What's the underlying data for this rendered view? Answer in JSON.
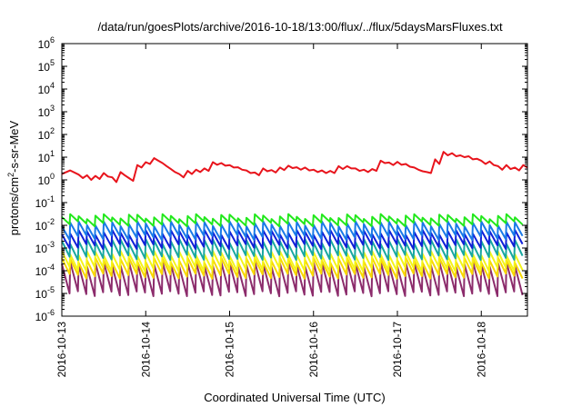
{
  "chart_data": {
    "type": "line",
    "title": "/data/run/goesPlots/archive/2016-10-18/13:00/flux/../flux/5daysMarsFluxes.txt",
    "xlabel": "Coordinated Universal Time (UTC)",
    "ylabel_parts": [
      "protons/cm",
      "2",
      "-s-sr-MeV"
    ],
    "x_ticks": [
      "2016-10-13",
      "2016-10-14",
      "2016-10-15",
      "2016-10-16",
      "2016-10-17",
      "2016-10-18"
    ],
    "x_range_days": [
      0,
      5.55
    ],
    "y_scale": "log",
    "y_exponents": [
      -6,
      -5,
      -4,
      -3,
      -2,
      -1,
      0,
      1,
      2,
      3,
      4,
      5,
      6
    ],
    "grid": false,
    "red_series": {
      "color": "#e8141c",
      "x": [
        0.0,
        0.1,
        0.2,
        0.25,
        0.3,
        0.35,
        0.4,
        0.45,
        0.5,
        0.55,
        0.6,
        0.65,
        0.7,
        0.75,
        0.8,
        0.85,
        0.9,
        0.95,
        1.0,
        1.05,
        1.1,
        1.15,
        1.2,
        1.25,
        1.3,
        1.35,
        1.4,
        1.45,
        1.5,
        1.55,
        1.6,
        1.65,
        1.7,
        1.75,
        1.8,
        1.85,
        1.9,
        1.95,
        2.0,
        2.05,
        2.1,
        2.15,
        2.2,
        2.25,
        2.3,
        2.35,
        2.4,
        2.45,
        2.5,
        2.55,
        2.6,
        2.65,
        2.7,
        2.75,
        2.8,
        2.85,
        2.9,
        2.95,
        3.0,
        3.05,
        3.1,
        3.15,
        3.2,
        3.25,
        3.3,
        3.35,
        3.4,
        3.45,
        3.5,
        3.55,
        3.6,
        3.65,
        3.7,
        3.75,
        3.8,
        3.85,
        3.9,
        3.95,
        4.0,
        4.05,
        4.1,
        4.15,
        4.2,
        4.25,
        4.3,
        4.35,
        4.4,
        4.45,
        4.5,
        4.55,
        4.6,
        4.65,
        4.7,
        4.75,
        4.8,
        4.85,
        4.9,
        4.95,
        5.0,
        5.05,
        5.1,
        5.15,
        5.2,
        5.25,
        5.3,
        5.35,
        5.4,
        5.45,
        5.5,
        5.55
      ],
      "values": [
        1.8,
        2.6,
        1.7,
        1.2,
        1.6,
        1.0,
        1.5,
        1.1,
        2.0,
        1.4,
        1.3,
        0.8,
        2.2,
        1.6,
        1.2,
        0.9,
        4.5,
        3.5,
        6.0,
        5.0,
        9.0,
        7.0,
        5.5,
        4.0,
        3.0,
        2.2,
        1.8,
        1.3,
        2.5,
        1.8,
        2.8,
        2.2,
        3.2,
        2.5,
        6.0,
        4.6,
        5.5,
        4.2,
        4.5,
        3.5,
        3.6,
        2.8,
        2.6,
        2.0,
        2.1,
        1.6,
        3.2,
        2.4,
        2.7,
        2.1,
        3.5,
        2.7,
        4.2,
        3.3,
        3.6,
        2.8,
        3.5,
        2.6,
        2.8,
        2.2,
        2.6,
        2.0,
        2.5,
        2.0,
        4.0,
        3.0,
        4.0,
        3.2,
        3.2,
        2.5,
        2.8,
        2.2,
        3.0,
        2.5,
        7.0,
        5.5,
        5.8,
        4.5,
        6.2,
        4.6,
        5.0,
        3.8,
        3.5,
        2.8,
        2.4,
        2.2,
        2.0,
        8.0,
        5.0,
        17.0,
        12.0,
        15.0,
        11.0,
        12.0,
        10.0,
        11.0,
        8.0,
        8.5,
        7.0,
        5.0,
        6.5,
        4.5,
        4.0,
        2.8,
        4.5,
        3.0,
        3.5,
        2.6,
        4.5,
        3.5
      ]
    },
    "sawtooth_series": [
      {
        "color": "#22e81c",
        "peak": 0.025,
        "trough": 0.012
      },
      {
        "color": "#1a7ae8",
        "peak": 0.012,
        "trough": 0.003
      },
      {
        "color": "#1020d8",
        "peak": 0.005,
        "trough": 0.0012
      },
      {
        "color": "#18a8a0",
        "peak": 0.002,
        "trough": 0.0004
      },
      {
        "color": "#f4f41a",
        "peak": 0.0006,
        "trough": 0.00012
      },
      {
        "color": "#f8d800",
        "peak": 0.0003,
        "trough": 6e-05
      },
      {
        "color": "#8c2c6c",
        "peak": 0.0002,
        "trough": 1e-05
      }
    ],
    "sawtooth_period_days": 0.1
  }
}
